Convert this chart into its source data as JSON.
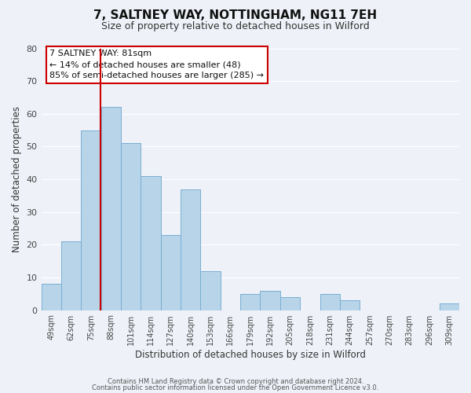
{
  "title": "7, SALTNEY WAY, NOTTINGHAM, NG11 7EH",
  "subtitle": "Size of property relative to detached houses in Wilford",
  "xlabel": "Distribution of detached houses by size in Wilford",
  "ylabel": "Number of detached properties",
  "categories": [
    "49sqm",
    "62sqm",
    "75sqm",
    "88sqm",
    "101sqm",
    "114sqm",
    "127sqm",
    "140sqm",
    "153sqm",
    "166sqm",
    "179sqm",
    "192sqm",
    "205sqm",
    "218sqm",
    "231sqm",
    "244sqm",
    "257sqm",
    "270sqm",
    "283sqm",
    "296sqm",
    "309sqm"
  ],
  "values": [
    8,
    21,
    55,
    62,
    51,
    41,
    23,
    37,
    12,
    0,
    5,
    6,
    4,
    0,
    5,
    3,
    0,
    0,
    0,
    0,
    2
  ],
  "bar_color": "#b8d4e8",
  "bar_edge_color": "#7aaed4",
  "vline_color": "#cc0000",
  "vline_x_index": 2.46,
  "ylim": [
    0,
    80
  ],
  "yticks": [
    0,
    10,
    20,
    30,
    40,
    50,
    60,
    70,
    80
  ],
  "annotation_title": "7 SALTNEY WAY: 81sqm",
  "annotation_line1": "← 14% of detached houses are smaller (48)",
  "annotation_line2": "85% of semi-detached houses are larger (285) →",
  "annotation_box_facecolor": "#ffffff",
  "annotation_box_edgecolor": "#cc0000",
  "footer1": "Contains HM Land Registry data © Crown copyright and database right 2024.",
  "footer2": "Contains public sector information licensed under the Open Government Licence v3.0.",
  "background_color": "#eef2f8",
  "grid_color": "#ffffff",
  "title_fontsize": 11,
  "subtitle_fontsize": 9
}
